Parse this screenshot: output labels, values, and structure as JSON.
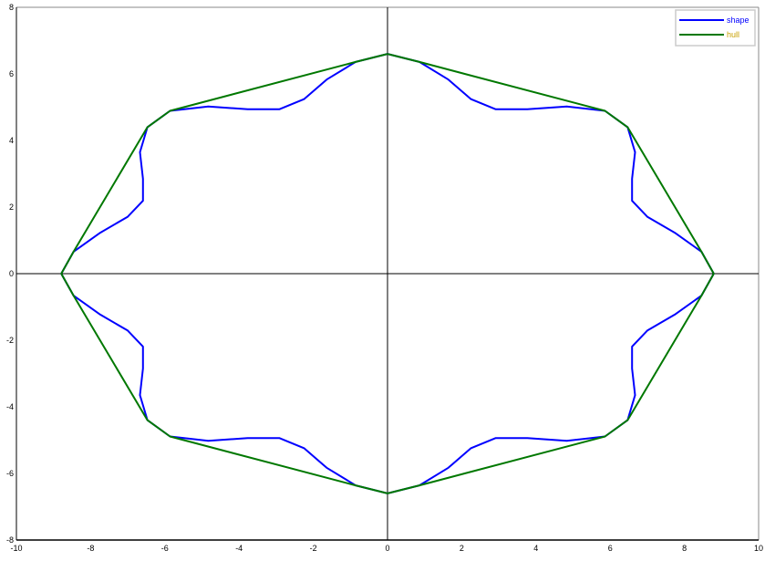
{
  "chart_data": {
    "type": "line",
    "title": "",
    "xlabel": "",
    "ylabel": "",
    "xlim": [
      -10,
      10
    ],
    "ylim": [
      -8,
      8
    ],
    "x_ticks": [
      "-10",
      "-8",
      "-6",
      "-4",
      "-2",
      "0",
      "2",
      "4",
      "6",
      "8",
      "10"
    ],
    "y_ticks": [
      "-8",
      "-6",
      "-4",
      "-2",
      "0",
      "2",
      "4",
      "6",
      "8"
    ],
    "grid": false,
    "axes_through_origin": true,
    "legend_position": "top-right",
    "series": [
      {
        "name": "shape",
        "color": "#0000ff",
        "label_color": "#0000ff",
        "points": [
          [
            0,
            6.6
          ],
          [
            0.86,
            6.36
          ],
          [
            1.64,
            5.83
          ],
          [
            2.25,
            5.24
          ],
          [
            2.91,
            4.94
          ],
          [
            3.77,
            4.94
          ],
          [
            4.83,
            5.02
          ],
          [
            5.86,
            4.89
          ],
          [
            6.47,
            4.4
          ],
          [
            6.67,
            3.65
          ],
          [
            6.59,
            2.85
          ],
          [
            6.59,
            2.19
          ],
          [
            7.0,
            1.71
          ],
          [
            7.74,
            1.23
          ],
          [
            8.46,
            0.66
          ],
          [
            8.79,
            0
          ],
          [
            8.46,
            -0.66
          ],
          [
            7.74,
            -1.23
          ],
          [
            7.0,
            -1.71
          ],
          [
            6.59,
            -2.19
          ],
          [
            6.59,
            -2.85
          ],
          [
            6.67,
            -3.65
          ],
          [
            6.47,
            -4.4
          ],
          [
            5.86,
            -4.89
          ],
          [
            4.83,
            -5.02
          ],
          [
            3.77,
            -4.94
          ],
          [
            2.91,
            -4.94
          ],
          [
            2.25,
            -5.24
          ],
          [
            1.64,
            -5.83
          ],
          [
            0.86,
            -6.36
          ],
          [
            0,
            -6.6
          ],
          [
            -0.86,
            -6.36
          ],
          [
            -1.64,
            -5.83
          ],
          [
            -2.25,
            -5.24
          ],
          [
            -2.91,
            -4.94
          ],
          [
            -3.77,
            -4.94
          ],
          [
            -4.83,
            -5.02
          ],
          [
            -5.86,
            -4.89
          ],
          [
            -6.47,
            -4.4
          ],
          [
            -6.67,
            -3.65
          ],
          [
            -6.59,
            -2.85
          ],
          [
            -6.59,
            -2.19
          ],
          [
            -7.0,
            -1.71
          ],
          [
            -7.74,
            -1.23
          ],
          [
            -8.46,
            -0.66
          ],
          [
            -8.79,
            0
          ],
          [
            -8.46,
            0.66
          ],
          [
            -7.74,
            1.23
          ],
          [
            -7.0,
            1.71
          ],
          [
            -6.59,
            2.19
          ],
          [
            -6.59,
            2.85
          ],
          [
            -6.67,
            3.65
          ],
          [
            -6.47,
            4.4
          ],
          [
            -5.86,
            4.89
          ],
          [
            -4.83,
            5.02
          ],
          [
            -3.77,
            4.94
          ],
          [
            -2.91,
            4.94
          ],
          [
            -2.25,
            5.24
          ],
          [
            -1.64,
            5.83
          ],
          [
            -0.86,
            6.36
          ],
          [
            0,
            6.6
          ]
        ]
      },
      {
        "name": "hull",
        "color": "#007800",
        "label_color": "#c8a000",
        "points": [
          [
            0,
            6.6
          ],
          [
            0.86,
            6.36
          ],
          [
            5.86,
            4.89
          ],
          [
            6.47,
            4.4
          ],
          [
            8.46,
            0.66
          ],
          [
            8.79,
            0
          ],
          [
            8.46,
            -0.66
          ],
          [
            6.47,
            -4.4
          ],
          [
            5.86,
            -4.89
          ],
          [
            0.86,
            -6.36
          ],
          [
            0,
            -6.6
          ],
          [
            -0.86,
            -6.36
          ],
          [
            -5.86,
            -4.89
          ],
          [
            -6.47,
            -4.4
          ],
          [
            -8.46,
            -0.66
          ],
          [
            -8.79,
            0
          ],
          [
            -8.46,
            0.66
          ],
          [
            -6.47,
            4.4
          ],
          [
            -5.86,
            4.89
          ],
          [
            -0.86,
            6.36
          ],
          [
            0,
            6.6
          ]
        ]
      }
    ]
  }
}
